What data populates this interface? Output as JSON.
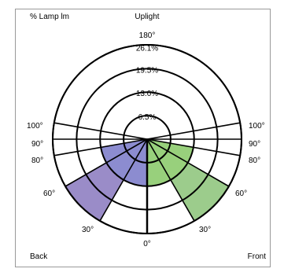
{
  "chart_data": {
    "type": "polar",
    "corner_labels": {
      "top_left": "% Lamp lm",
      "top_center": "Uplight",
      "bottom_left": "Back",
      "bottom_right": "Front"
    },
    "radial_axis": {
      "ticks": [
        6.5,
        13.0,
        19.5,
        26.1
      ],
      "tick_labels": [
        "6.5%",
        "13.0%",
        "19.5%",
        "26.1%"
      ],
      "max": 26.1
    },
    "angle_labels": {
      "top": "180°",
      "bottom": "0°",
      "left": [
        "100°",
        "90°",
        "80°",
        "60°",
        "30°"
      ],
      "right": [
        "100°",
        "90°",
        "80°",
        "60°",
        "30°"
      ]
    },
    "angle_zones": [
      {
        "from": 0,
        "to": 30,
        "back": 13.0,
        "front": 13.0
      },
      {
        "from": 30,
        "to": 60,
        "back": 26.1,
        "front": 26.1
      },
      {
        "from": 60,
        "to": 80,
        "back": 5.5,
        "front": 12.5
      },
      {
        "from": 80,
        "to": 90,
        "back": 1.5,
        "front": 2.5
      }
    ],
    "series": [
      {
        "name": "Back",
        "color": "#9a8cc8"
      },
      {
        "name": "Front",
        "color": "#9ccc8c"
      }
    ],
    "highlight_colors": {
      "back_core": "#8c8cd0",
      "front_core": "#98d07c",
      "back_80_90": "#a8a8c8",
      "front_80_90": "#b8d8a8"
    }
  }
}
